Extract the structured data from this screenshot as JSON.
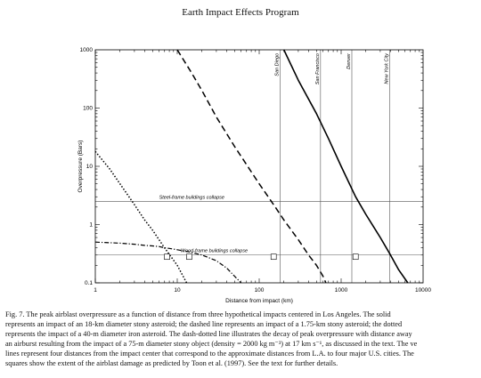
{
  "page_title": "Earth Impact Effects Program",
  "caption_lines": [
    "Fig. 7. The peak airblast overpressure as a function of distance from three hypothetical impacts centered in Los Angeles. The solid",
    "represents an impact of an 18-km diameter stony asteroid; the dashed line represents an impact of a 1.75-km stony asteroid; the dotted",
    "represents the impact of a 40-m diameter iron asteroid. The dash-dotted line illustrates the decay of peak overpressure with distance away",
    "an airburst resulting from the impact of a 75-m diameter stony object (density = 2000 kg m⁻³) at 17 km s⁻¹, as discussed in the text. The ve",
    "lines represent four distances from the impact center that correspond to the approximate distances from L.A. to four major U.S. cities. The",
    "squares show the extent of the airblast damage as predicted by Toon et al. (1997). See the text for further details."
  ],
  "chart_data": {
    "type": "line",
    "xlabel": "Distance from impact (km)",
    "ylabel": "Overpressure (Bars)",
    "xscale": "log",
    "yscale": "log",
    "xlim": [
      1,
      10000
    ],
    "ylim": [
      0.1,
      1000
    ],
    "x_ticks": [
      1,
      10,
      100,
      1000,
      10000
    ],
    "x_tick_labels": [
      "1",
      "10",
      "100",
      "1000",
      "10000"
    ],
    "y_ticks": [
      0.1,
      1,
      10,
      100,
      1000
    ],
    "y_tick_labels": [
      "0.1",
      "1",
      "10",
      "100",
      "1000"
    ],
    "series": [
      {
        "style": "solid",
        "color": "#000000",
        "x": [
          200,
          300,
          500,
          700,
          1000,
          1500,
          2000,
          3000,
          4000,
          5000,
          6500
        ],
        "y": [
          1000,
          300,
          80,
          30,
          10,
          3,
          1.5,
          0.6,
          0.3,
          0.17,
          0.1
        ]
      },
      {
        "style": "dashed",
        "color": "#000000",
        "x": [
          10,
          15,
          20,
          30,
          50,
          100,
          150,
          200,
          300,
          400,
          500,
          600,
          650
        ],
        "y": [
          1000,
          400,
          200,
          70,
          22,
          5,
          2.2,
          1.2,
          0.55,
          0.3,
          0.2,
          0.13,
          0.1
        ]
      },
      {
        "style": "dotted",
        "color": "#000000",
        "x": [
          1,
          1.5,
          2,
          3,
          4,
          5,
          7,
          10,
          13
        ],
        "y": [
          18,
          9,
          5,
          2.2,
          1.2,
          0.8,
          0.4,
          0.2,
          0.1
        ]
      },
      {
        "style": "dash-dot",
        "color": "#000000",
        "x": [
          1,
          2,
          3,
          4,
          5,
          6,
          7,
          8,
          10,
          14,
          20,
          30,
          40,
          50,
          60
        ],
        "y": [
          0.5,
          0.48,
          0.46,
          0.44,
          0.43,
          0.42,
          0.4,
          0.39,
          0.37,
          0.34,
          0.3,
          0.24,
          0.18,
          0.13,
          0.1
        ]
      }
    ],
    "horizontal_lines": [
      {
        "y": 2.5,
        "label": "Steel-frame buildings collapse"
      },
      {
        "y": 0.3,
        "label": "Wood-frame buildings collapse"
      }
    ],
    "vertical_lines": [
      {
        "x": 180,
        "label": "San Diego"
      },
      {
        "x": 560,
        "label": "San Francisco"
      },
      {
        "x": 1350,
        "label": "Denver"
      },
      {
        "x": 3900,
        "label": "New York City"
      }
    ],
    "squares": [
      {
        "x": 7.5,
        "y": 0.28
      },
      {
        "x": 14,
        "y": 0.28
      },
      {
        "x": 150,
        "y": 0.28
      },
      {
        "x": 1500,
        "y": 0.28
      }
    ]
  }
}
